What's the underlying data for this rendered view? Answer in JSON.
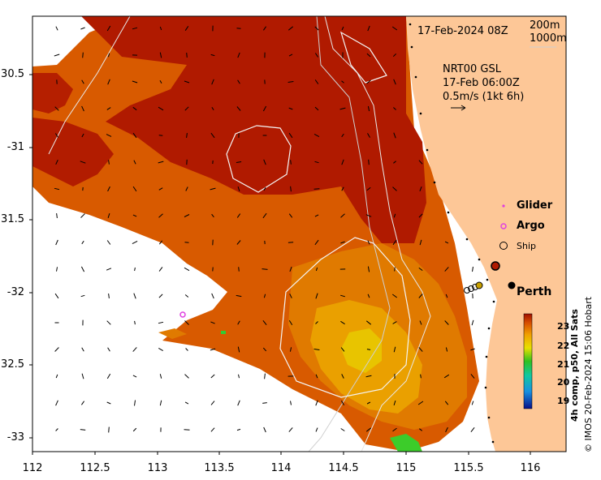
{
  "map": {
    "date_label": "17-Feb-2024 08Z",
    "contour_labels": [
      "200m",
      "1000m"
    ],
    "current": {
      "title": "NRT00 GSL",
      "time": "17-Feb 06:00Z",
      "scale": "0.5m/s (1kt 6h)"
    },
    "legend": {
      "glider": "Glider",
      "argo": "Argo",
      "ship": "Ship"
    },
    "place": "Perth",
    "lat_ticks": [
      "30.5",
      "-31",
      "31.5",
      "-32",
      "32.5",
      "-33"
    ],
    "lon_ticks": [
      "112",
      "112.5",
      "113",
      "113.5",
      "114",
      "114.5",
      "115",
      "115.5",
      "116"
    ],
    "colorbar": {
      "ticks": [
        "23",
        "22",
        "21",
        "20",
        "19"
      ],
      "range": [
        18.7,
        23.6
      ]
    },
    "side_label": "4h comp, p50, All Sats",
    "credit": "© IMOS 20-Feb-2024 15:06 Hobart",
    "colors": {
      "land": "#fdc797",
      "hot": "#b01a00",
      "mid": "#d45400",
      "warm": "#f08d00",
      "cool": "#e4c800",
      "green": "#33cc33",
      "argo": "#e040e0",
      "glider": "#e040e0"
    }
  }
}
